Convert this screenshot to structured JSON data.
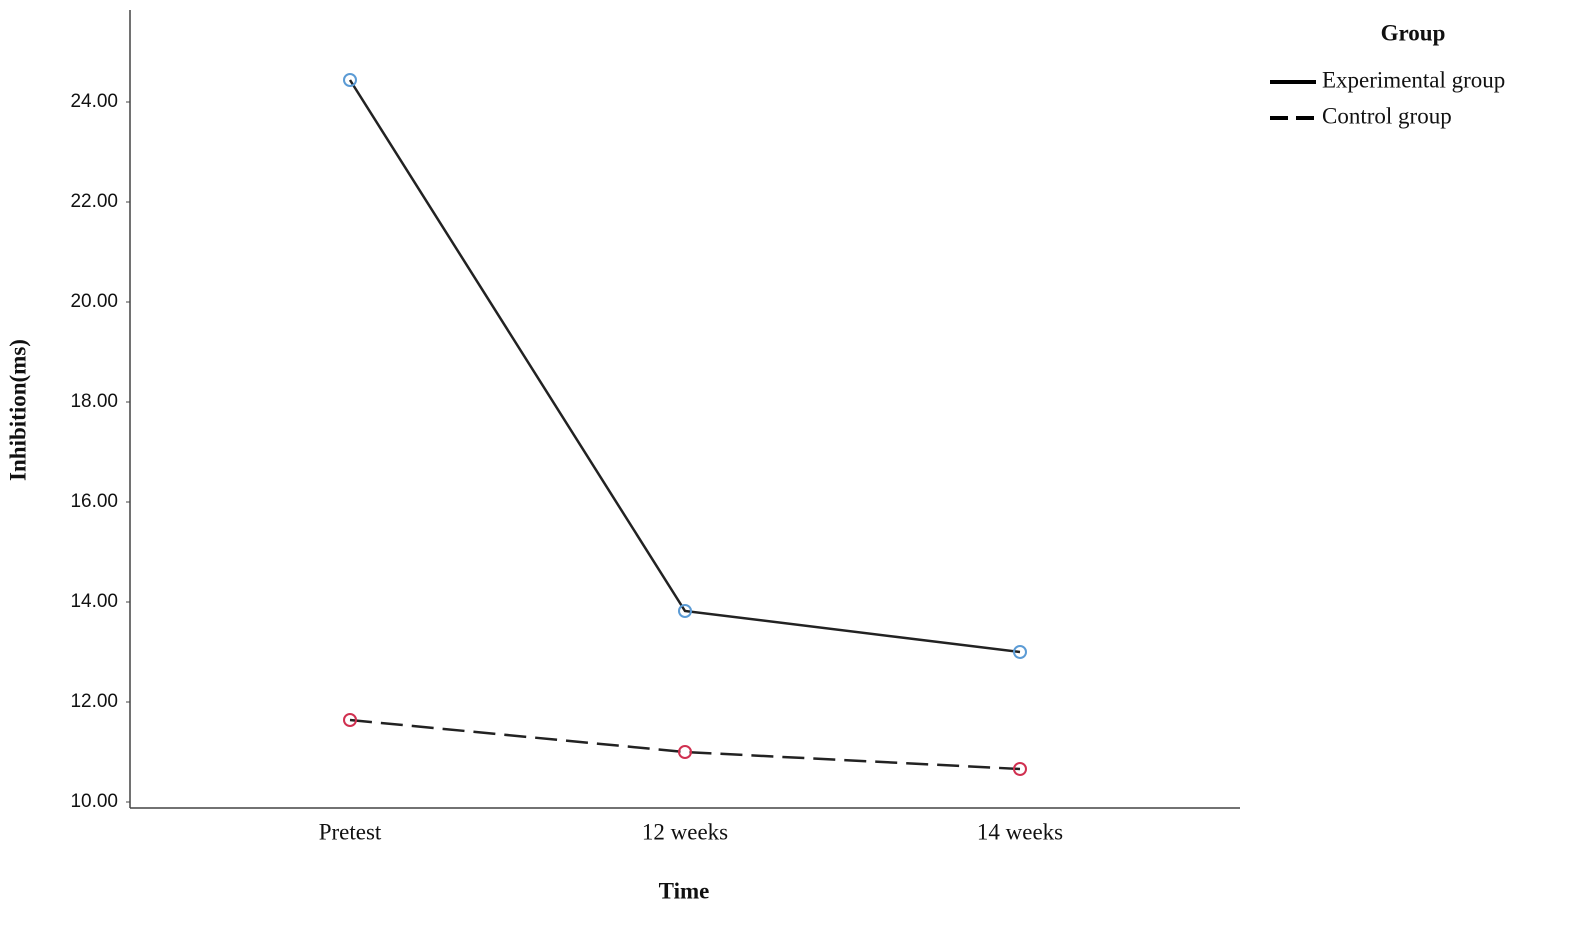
{
  "chart_data": {
    "type": "line",
    "x_label": "Time",
    "y_label": "Inhibition(ms)",
    "categories": [
      "Pretest",
      "12 weeks",
      "14 weeks"
    ],
    "series": [
      {
        "name": "Experimental group",
        "color": "#222222",
        "marker_color": "#5b9bd5",
        "dash": "solid",
        "values": [
          24.44,
          13.82,
          13.0
        ]
      },
      {
        "name": "Control group",
        "color": "#222222",
        "marker_color": "#d03050",
        "dash": "dashed",
        "values": [
          11.64,
          11.0,
          10.66
        ]
      }
    ],
    "ylim": [
      9.88,
      25.84
    ],
    "yticks": [
      {
        "value": 10,
        "label": "10.00"
      },
      {
        "value": 12,
        "label": "12.00"
      },
      {
        "value": 14,
        "label": "14.00"
      },
      {
        "value": 16,
        "label": "16.00"
      },
      {
        "value": 18,
        "label": "18.00"
      },
      {
        "value": 20,
        "label": "20.00"
      },
      {
        "value": 22,
        "label": "22.00"
      },
      {
        "value": 24,
        "label": "24.00"
      }
    ],
    "legend_title": "Group",
    "legend_position": "right",
    "grid": false
  }
}
